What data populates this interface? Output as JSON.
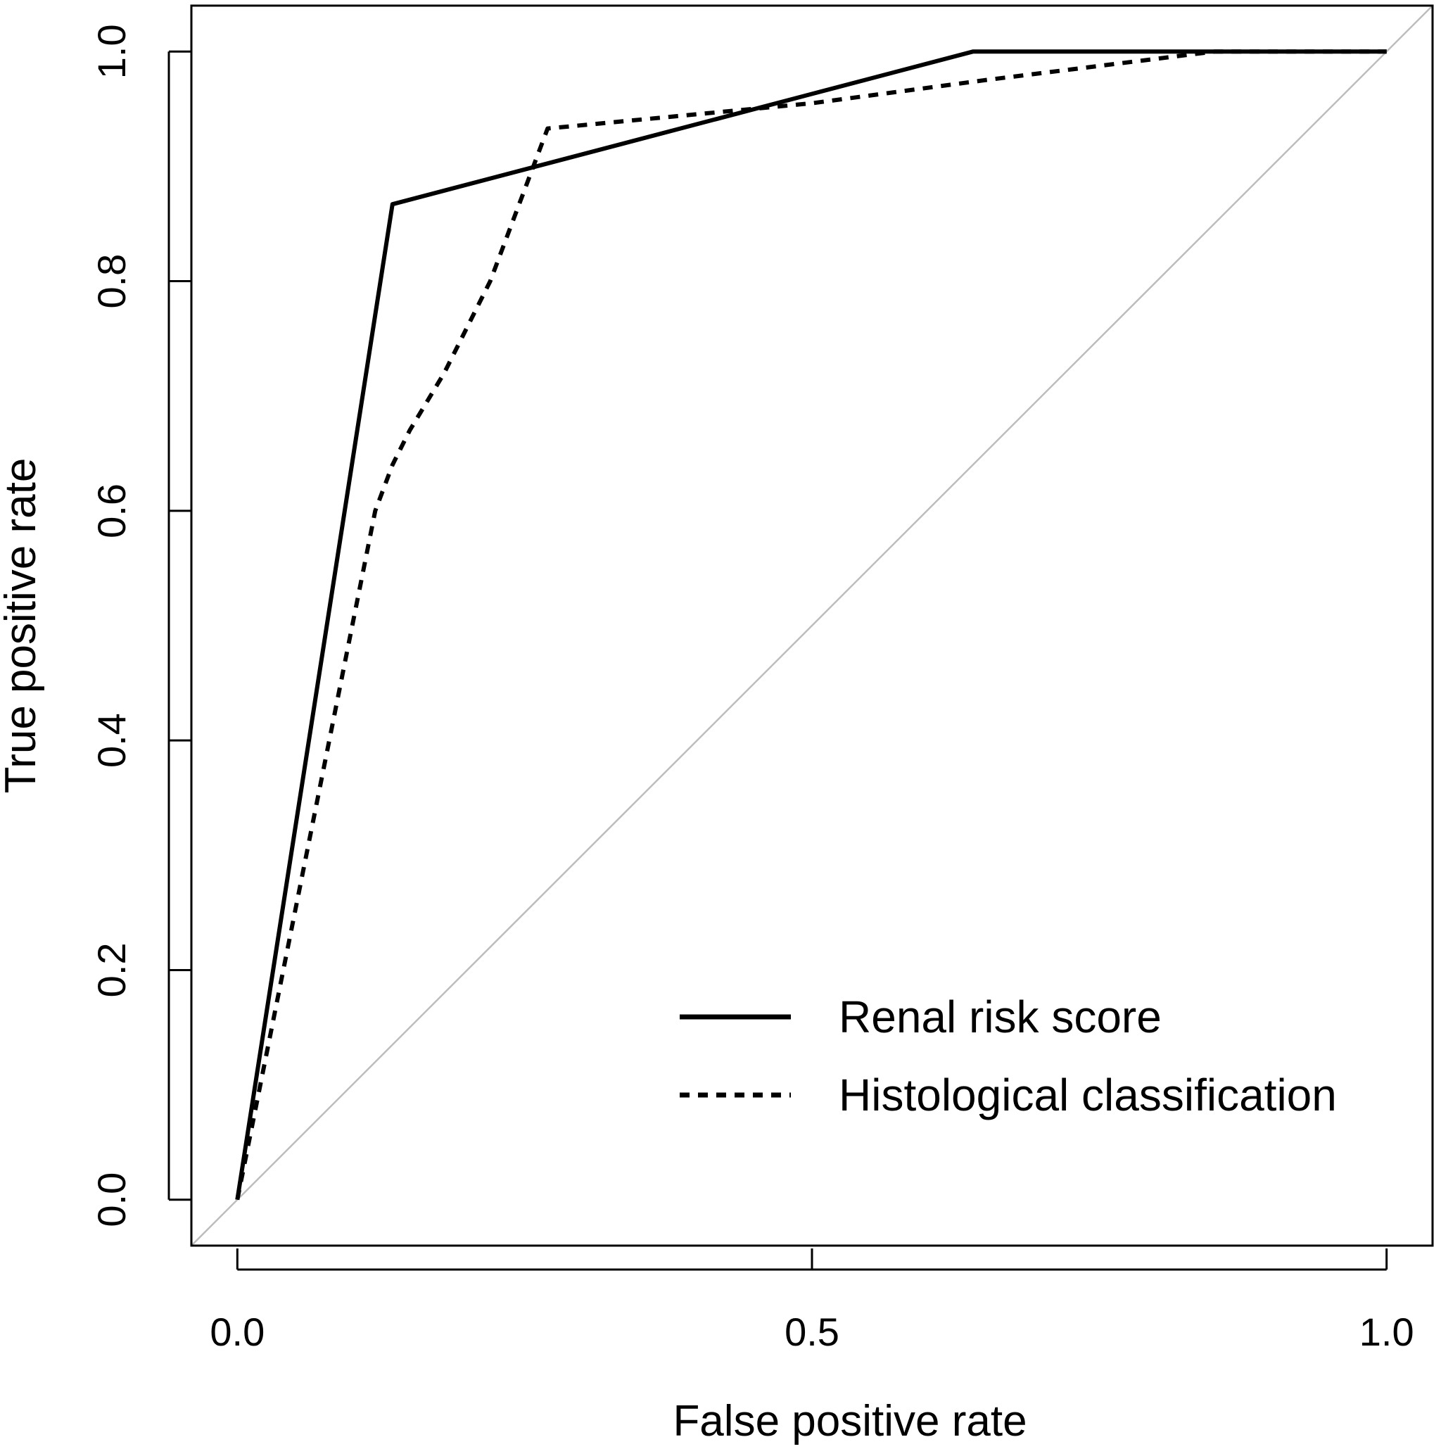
{
  "chart_data": {
    "type": "line",
    "title": "",
    "xlabel": "False positive rate",
    "ylabel": "True positive rate",
    "xlim": [
      -0.04,
      1.04
    ],
    "ylim": [
      -0.04,
      1.04
    ],
    "grid": false,
    "legend_position": "bottom-right",
    "x_ticks": [
      {
        "value": 0.0,
        "label": "0.0"
      },
      {
        "value": 0.5,
        "label": "0.5"
      },
      {
        "value": 1.0,
        "label": "1.0"
      }
    ],
    "y_ticks": [
      {
        "value": 0.0,
        "label": "0.0"
      },
      {
        "value": 0.2,
        "label": "0.2"
      },
      {
        "value": 0.4,
        "label": "0.4"
      },
      {
        "value": 0.6,
        "label": "0.6"
      },
      {
        "value": 0.8,
        "label": "0.8"
      },
      {
        "value": 1.0,
        "label": "1.0"
      }
    ],
    "reference_line": {
      "x": [
        -0.04,
        1.04
      ],
      "y": [
        -0.04,
        1.04
      ],
      "color": "#bdbdbd"
    },
    "series": [
      {
        "name": "Renal risk score",
        "style": "solid",
        "color": "#000000",
        "x": [
          0.0,
          0.135,
          0.64,
          1.0
        ],
        "y": [
          0.0,
          0.867,
          1.0,
          1.0
        ]
      },
      {
        "name": "Histological classification",
        "style": "dashed",
        "color": "#000000",
        "x": [
          0.0,
          0.12,
          0.135,
          0.15,
          0.18,
          0.22,
          0.27,
          0.5,
          0.65,
          0.85,
          1.0
        ],
        "y": [
          0.0,
          0.6,
          0.64,
          0.67,
          0.72,
          0.8,
          0.933,
          0.955,
          0.975,
          1.0,
          1.0
        ]
      }
    ]
  }
}
